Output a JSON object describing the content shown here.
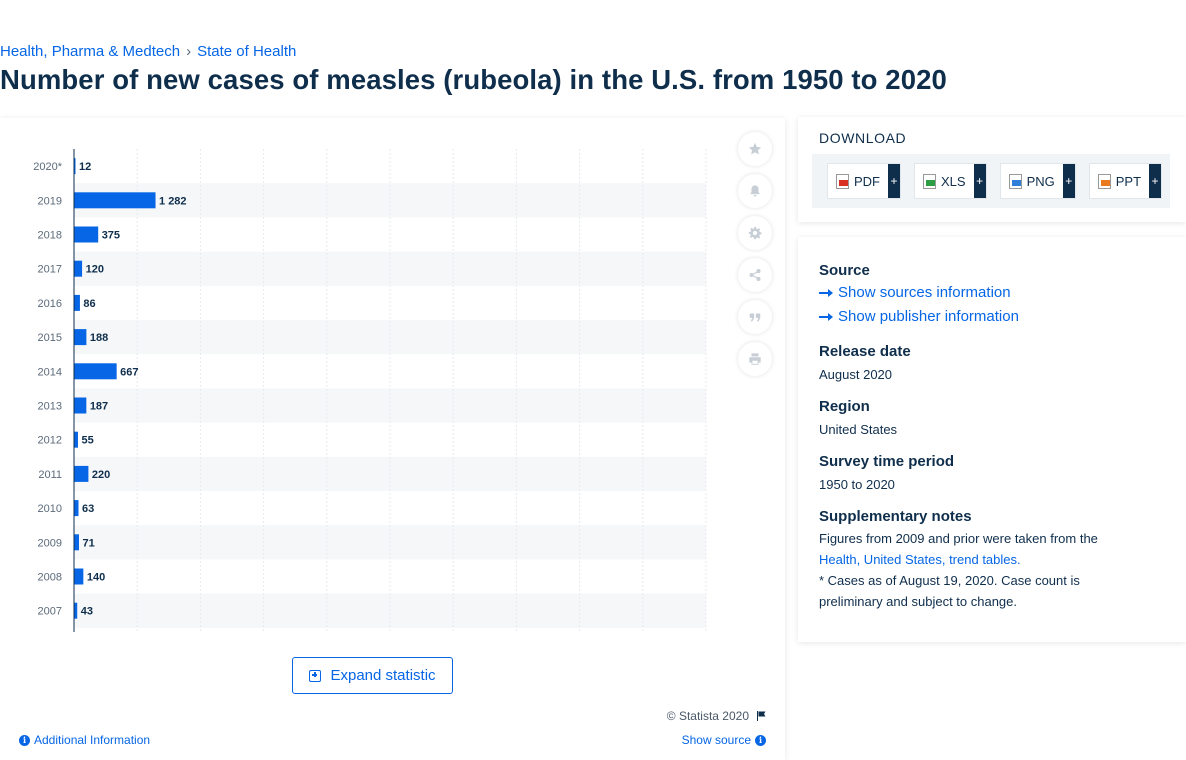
{
  "breadcrumb": {
    "items": [
      "Health, Pharma & Medtech",
      "State of Health"
    ]
  },
  "page": {
    "title": "Number of new cases of measles (rubeola) in the U.S. from 1950 to 2020"
  },
  "chart_data": {
    "type": "bar",
    "orientation": "horizontal",
    "title": "",
    "xlabel": "",
    "ylabel": "",
    "categories": [
      "2020*",
      "2019",
      "2018",
      "2017",
      "2016",
      "2015",
      "2014",
      "2013",
      "2012",
      "2011",
      "2010",
      "2009",
      "2008",
      "2007"
    ],
    "values": [
      12,
      1282,
      375,
      120,
      86,
      188,
      667,
      187,
      55,
      220,
      63,
      71,
      140,
      43
    ],
    "value_labels": [
      "12",
      "1 282",
      "375",
      "120",
      "86",
      "188",
      "667",
      "187",
      "55",
      "220",
      "63",
      "71",
      "140",
      "43"
    ],
    "bar_color": "#0666e5",
    "grid": true,
    "legend": "none"
  },
  "chart_card": {
    "expand_label": "Expand statistic",
    "copyright": "© Statista 2020",
    "additional_info": "Additional Information",
    "show_source": "Show source",
    "toolbar_icons": [
      "star-icon",
      "bell-icon",
      "gear-icon",
      "share-icon",
      "quote-icon",
      "print-icon"
    ]
  },
  "download": {
    "title": "DOWNLOAD",
    "buttons": [
      {
        "label": "PDF",
        "plus": "+",
        "icon": "pdf-file-icon"
      },
      {
        "label": "XLS",
        "plus": "+",
        "icon": "xls-file-icon"
      },
      {
        "label": "PNG",
        "plus": "+",
        "icon": "png-file-icon"
      },
      {
        "label": "PPT",
        "plus": "+",
        "icon": "ppt-file-icon"
      }
    ]
  },
  "info": {
    "source_heading": "Source",
    "show_sources": "Show sources information",
    "show_publisher": "Show publisher information",
    "release_heading": "Release date",
    "release_value": "August 2020",
    "region_heading": "Region",
    "region_value": "United States",
    "period_heading": "Survey time period",
    "period_value": "1950 to 2020",
    "notes_heading": "Supplementary notes",
    "notes_text_1": "Figures from 2009 and prior were taken from the ",
    "notes_link": "Health, United States, trend tables.",
    "notes_text_2": "* Cases as of August 19, 2020. Case count is preliminary and subject to change."
  },
  "colors": {
    "link": "#0666e5",
    "text": "#0f2e4c",
    "stripe": "#f5f7f9",
    "grid": "#e6eaee"
  }
}
